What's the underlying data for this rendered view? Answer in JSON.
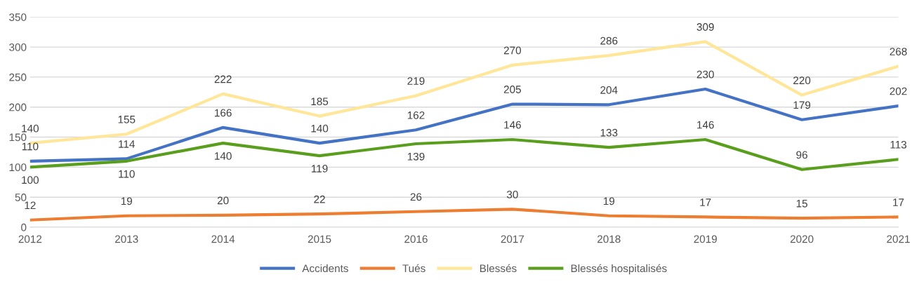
{
  "chart_data": {
    "type": "line",
    "categories": [
      "2012",
      "2013",
      "2014",
      "2015",
      "2016",
      "2017",
      "2018",
      "2019",
      "2020",
      "2021"
    ],
    "series": [
      {
        "name": "Accidents",
        "color": "#4472c4",
        "values": [
          110,
          114,
          166,
          140,
          162,
          205,
          204,
          230,
          179,
          202
        ]
      },
      {
        "name": "Tués",
        "color": "#ed7d31",
        "values": [
          12,
          19,
          20,
          22,
          26,
          30,
          19,
          17,
          15,
          17
        ]
      },
      {
        "name": "Blessés",
        "color": "#ffe699",
        "values": [
          140,
          155,
          222,
          185,
          219,
          270,
          286,
          309,
          220,
          268
        ]
      },
      {
        "name": "Blessés hospitalisés",
        "color": "#5a9e1e",
        "values": [
          100,
          110,
          140,
          119,
          139,
          146,
          133,
          146,
          96,
          113
        ]
      }
    ],
    "ylim": [
      0,
      350
    ],
    "yticks": [
      0,
      50,
      100,
      150,
      200,
      250,
      300,
      350
    ],
    "grid": "y",
    "legend": "bottom",
    "data_labels": true,
    "marker": "none",
    "line_style": "solid"
  }
}
